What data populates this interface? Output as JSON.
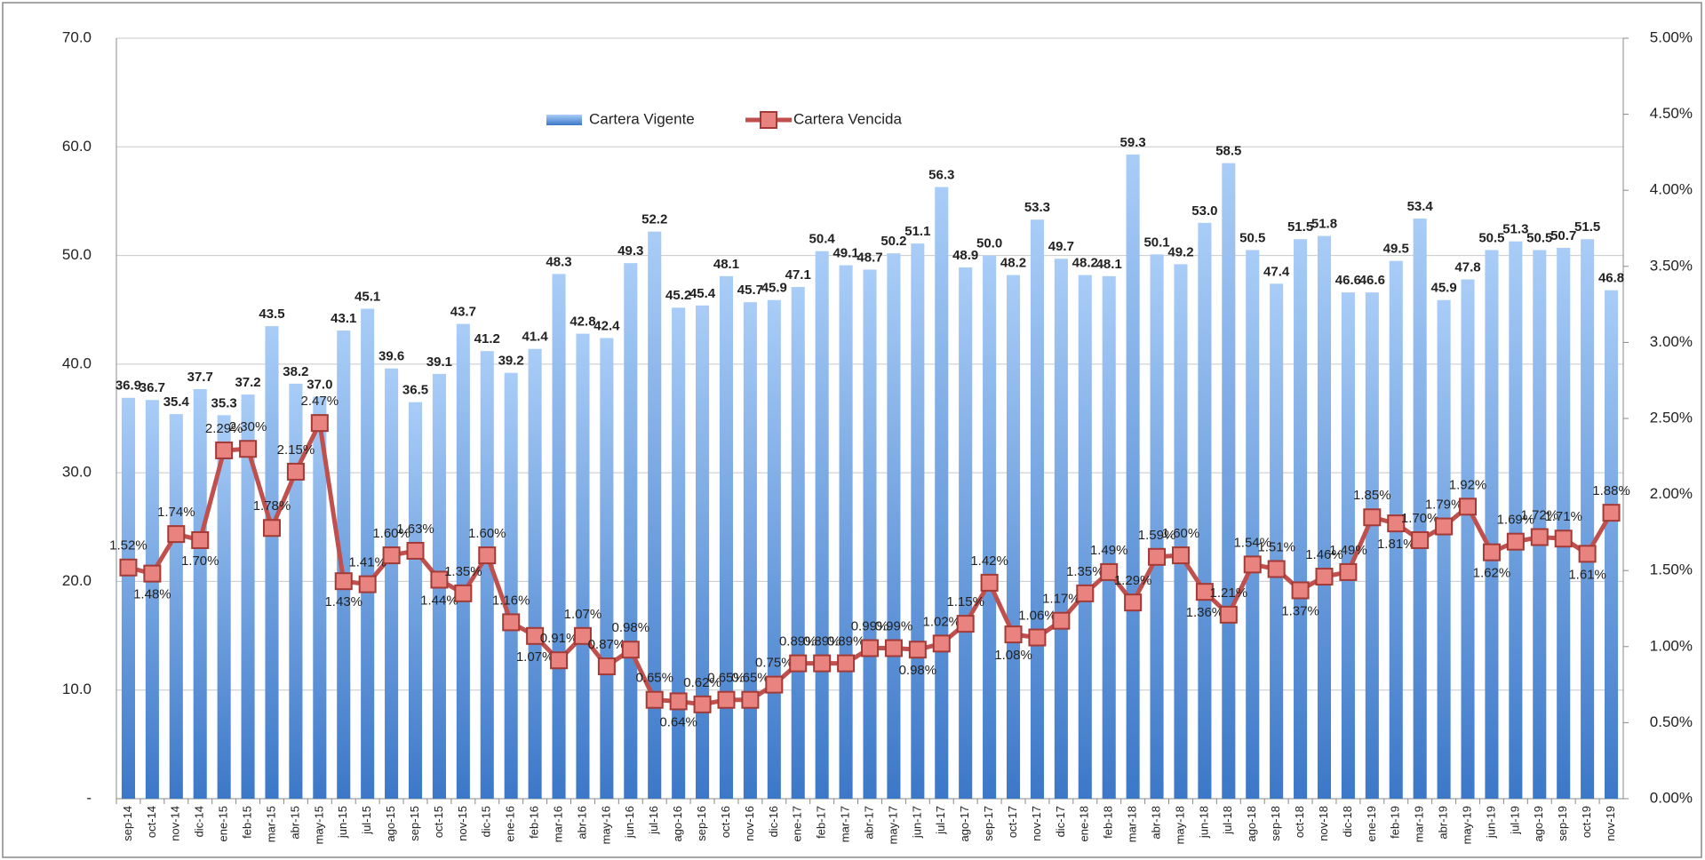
{
  "chart_data": {
    "type": "bar-line",
    "categories": [
      "sep-14",
      "oct-14",
      "nov-14",
      "dic-14",
      "ene-15",
      "feb-15",
      "mar-15",
      "abr-15",
      "may-15",
      "jun-15",
      "jul-15",
      "ago-15",
      "sep-15",
      "oct-15",
      "nov-15",
      "dic-15",
      "ene-16",
      "feb-16",
      "mar-16",
      "abr-16",
      "may-16",
      "jun-16",
      "jul-16",
      "ago-16",
      "sep-16",
      "oct-16",
      "nov-16",
      "dic-16",
      "ene-17",
      "feb-17",
      "mar-17",
      "abr-17",
      "may-17",
      "jun-17",
      "jul-17",
      "ago-17",
      "sep-17",
      "oct-17",
      "nov-17",
      "dic-17",
      "ene-18",
      "feb-18",
      "mar-18",
      "abr-18",
      "may-18",
      "jun-18",
      "jul-18",
      "ago-18",
      "sep-18",
      "oct-18",
      "nov-18",
      "dic-18",
      "ene-19",
      "feb-19",
      "mar-19",
      "abr-19",
      "may-19",
      "jun-19",
      "jul-19",
      "ago-19",
      "sep-19",
      "oct-19",
      "nov-19"
    ],
    "series": [
      {
        "name": "Cartera Vigente",
        "type": "bar",
        "color": "#5b9bd5",
        "values": [
          36.9,
          36.7,
          35.4,
          37.7,
          35.3,
          37.2,
          43.5,
          38.2,
          37.0,
          43.1,
          45.1,
          39.6,
          36.5,
          39.1,
          43.7,
          41.2,
          39.2,
          41.4,
          48.3,
          42.8,
          42.4,
          49.3,
          52.2,
          45.2,
          45.4,
          48.1,
          45.7,
          45.9,
          47.1,
          50.4,
          49.1,
          48.7,
          50.2,
          51.1,
          56.3,
          48.9,
          50.0,
          48.2,
          53.3,
          49.7,
          48.2,
          48.1,
          59.3,
          50.1,
          49.2,
          53.0,
          58.5,
          50.5,
          47.4,
          51.5,
          51.8,
          46.6,
          46.6,
          49.5,
          53.4,
          45.9,
          47.8,
          50.5,
          51.3,
          50.5,
          50.7,
          51.5,
          46.8
        ],
        "value_labels": [
          "36.9",
          "36.7",
          "35.4",
          "37.7",
          "35.3",
          "37.2",
          "43.5",
          "38.2",
          "37.0",
          "43.1",
          "45.1",
          "39.6",
          "36.5",
          "39.1",
          "43.7",
          "41.2",
          "39.2",
          "41.4",
          "48.3",
          "42.8",
          "42.4",
          "49.3",
          "52.2",
          "45.2",
          "45.4",
          "48.1",
          "45.7",
          "45.9",
          "47.1",
          "50.4",
          "49.1",
          "48.7",
          "50.2",
          "51.1",
          "56.3",
          "48.9",
          "50.0",
          "48.2",
          "53.3",
          "49.7",
          "48.2",
          "48.1",
          "59.3",
          "50.1",
          "49.2",
          "53.0",
          "58.5",
          "50.5",
          "47.4",
          "51.5",
          "51.8",
          "46.6",
          "46.6",
          "49.5",
          "53.4",
          "45.9",
          "47.8",
          "50.5",
          "51.3",
          "50.5",
          "50.7",
          "51.5",
          "46.8"
        ]
      },
      {
        "name": "Cartera Vencida",
        "type": "line",
        "axis": "y2",
        "color": "#c0504d",
        "values": [
          1.52,
          1.48,
          1.74,
          1.7,
          2.29,
          2.3,
          1.78,
          2.15,
          2.47,
          1.43,
          1.41,
          1.6,
          1.63,
          1.44,
          1.35,
          1.6,
          1.16,
          1.07,
          0.91,
          1.07,
          0.87,
          0.98,
          0.65,
          0.64,
          0.62,
          0.65,
          0.65,
          0.75,
          0.89,
          0.89,
          0.89,
          0.99,
          0.99,
          0.98,
          1.02,
          1.15,
          1.42,
          1.08,
          1.06,
          1.17,
          1.35,
          1.49,
          1.29,
          1.59,
          1.6,
          1.36,
          1.21,
          1.54,
          1.51,
          1.37,
          1.46,
          1.49,
          1.85,
          1.81,
          1.7,
          1.79,
          1.92,
          1.62,
          1.69,
          1.72,
          1.71,
          1.61,
          1.88
        ],
        "value_labels": [
          "1.52%",
          "1.48%",
          "1.74%",
          "1.70%",
          "2.29%",
          "2.30%",
          "1.78%",
          "2.15%",
          "2.47%",
          "1.43%",
          "1.41%",
          "1.60%",
          "1.63%",
          "1.44%",
          "1.35%",
          "1.60%",
          "1.16%",
          "1.07%",
          "0.91%",
          "1.07%",
          "0.87%",
          "0.98%",
          "0.65%",
          "0.64%",
          "0.62%",
          "0.65%",
          "0.65%",
          "0.75%",
          "0.89%",
          "0.89%",
          "0.89%",
          "0.99%",
          "0.99%",
          "0.98%",
          "1.02%",
          "1.15%",
          "1.42%",
          "1.08%",
          "1.06%",
          "1.17%",
          "1.35%",
          "1.49%",
          "1.29%",
          "1.59%",
          "1.60%",
          "1.36%",
          "1.21%",
          "1.54%",
          "1.51%",
          "1.37%",
          "1.46%",
          "1.49%",
          "1.85%",
          "1.81%",
          "1.70%",
          "1.79%",
          "1.92%",
          "1.62%",
          "1.69%",
          "1.72%",
          "1.71%",
          "1.61%",
          "1.88%"
        ]
      }
    ],
    "ylim": [
      0,
      70
    ],
    "yticks": [
      {
        "value": 0,
        "label": "-"
      },
      {
        "value": 10,
        "label": "10.0"
      },
      {
        "value": 20,
        "label": "20.0"
      },
      {
        "value": 30,
        "label": "30.0"
      },
      {
        "value": 40,
        "label": "40.0"
      },
      {
        "value": 50,
        "label": "50.0"
      },
      {
        "value": 60,
        "label": "60.0"
      },
      {
        "value": 70,
        "label": "70.0"
      }
    ],
    "y2lim": [
      0,
      5
    ],
    "y2ticks": [
      {
        "value": 0,
        "label": "0.00%"
      },
      {
        "value": 0.5,
        "label": "0.50%"
      },
      {
        "value": 1,
        "label": "1.00%"
      },
      {
        "value": 1.5,
        "label": "1.50%"
      },
      {
        "value": 2,
        "label": "2.00%"
      },
      {
        "value": 2.5,
        "label": "2.50%"
      },
      {
        "value": 3,
        "label": "3.00%"
      },
      {
        "value": 3.5,
        "label": "3.50%"
      },
      {
        "value": 4,
        "label": "4.00%"
      },
      {
        "value": 4.5,
        "label": "4.50%"
      },
      {
        "value": 5,
        "label": "5.00%"
      }
    ],
    "grid": true,
    "legend": "top"
  }
}
